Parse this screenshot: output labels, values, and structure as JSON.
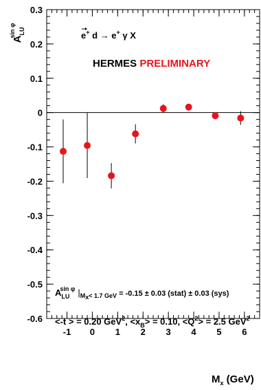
{
  "chart_data": {
    "type": "scatter",
    "x_axis": {
      "label_main": "M",
      "label_sub": "x",
      "label_unit": " (GeV)",
      "range": [
        -1.8,
        6.6
      ],
      "ticks": [
        {
          "value": -1,
          "label": "-1"
        },
        {
          "value": 0,
          "label": "0"
        },
        {
          "value": 1,
          "label": "1"
        },
        {
          "value": 2,
          "label": "2"
        },
        {
          "value": 3,
          "label": "3"
        },
        {
          "value": 4,
          "label": "4"
        },
        {
          "value": 5,
          "label": "5"
        },
        {
          "value": 6,
          "label": "6"
        }
      ]
    },
    "y_axis": {
      "label_main": "A",
      "label_sub": "LU",
      "label_sup": "sin φ",
      "range": [
        -0.6,
        0.3
      ],
      "ticks": [
        {
          "value": 0.3,
          "label": "0.3"
        },
        {
          "value": 0.2,
          "label": "0.2"
        },
        {
          "value": 0.1,
          "label": "0.1"
        },
        {
          "value": 0,
          "label": "0"
        },
        {
          "value": -0.1,
          "label": "-0.1"
        },
        {
          "value": -0.2,
          "label": "-0.2"
        },
        {
          "value": -0.3,
          "label": "-0.3"
        },
        {
          "value": -0.4,
          "label": "-0.4"
        },
        {
          "value": -0.5,
          "label": "-0.5"
        },
        {
          "value": -0.6,
          "label": "-0.6"
        }
      ]
    },
    "zero_line": true,
    "grid": false,
    "marker_color": "#e8141c",
    "points": [
      {
        "x": -1.15,
        "y": -0.113,
        "err": 0.093
      },
      {
        "x": -0.2,
        "y": -0.096,
        "err": 0.095
      },
      {
        "x": 0.75,
        "y": -0.184,
        "err": 0.037
      },
      {
        "x": 1.7,
        "y": -0.062,
        "err": 0.028
      },
      {
        "x": 2.8,
        "y": 0.012,
        "err": 0.012
      },
      {
        "x": 3.8,
        "y": 0.016,
        "err": 0.009
      },
      {
        "x": 4.85,
        "y": -0.009,
        "err": 0.01
      },
      {
        "x": 5.85,
        "y": -0.016,
        "err": 0.02
      }
    ]
  },
  "annotations": {
    "reaction": {
      "e_letter": "e",
      "plus": "+",
      "d_arrow": " d ",
      "arrow": "→",
      "e2": " e",
      "plus2": "+",
      "gamma_x": " γ X"
    },
    "experiment": {
      "name": "HERMES",
      "status": "PRELIMINARY",
      "status_color": "#e8141c"
    },
    "result": {
      "a": "A",
      "sup": "sin φ",
      "sub": "LU",
      "cond_sub": "M",
      "cond_sub2": "x",
      "cond_rest": "< 1.7 GeV",
      "value": " = -0.15 ± 0.03 (stat) ± 0.03 (sys)"
    },
    "kinematics": {
      "t_part": "<-t > = 0.20 GeV",
      "t_sup": "2",
      "xb_a": ", <x",
      "xb_sub": "B",
      "xb_b": "> = 0.10, <Q",
      "q_sup": "2",
      "q_rest": "> = 2.5 GeV",
      "q_sup2": "2"
    }
  }
}
